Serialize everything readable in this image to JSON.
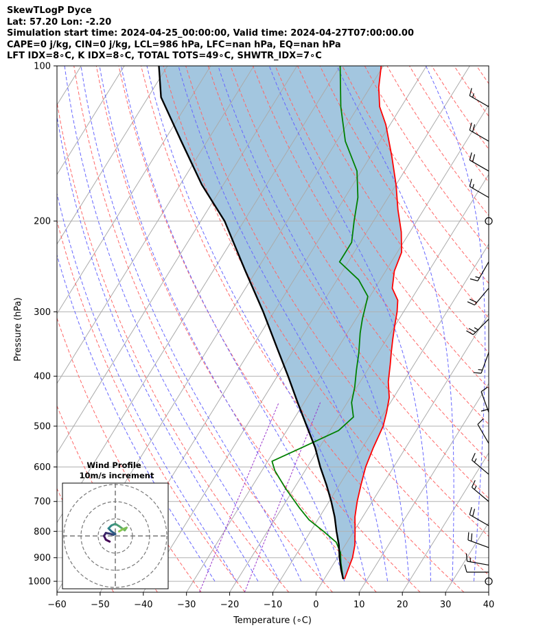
{
  "header": {
    "line1": "SkewTLogP Dyce",
    "line2": "Lat: 57.20   Lon: -2.20",
    "line3": "Simulation start time: 2024-04-25_00:00:00, Valid time: 2024-04-27T07:00:00.00",
    "line4": "CAPE=0 j/kg, CIN=0 j/kg, LCL=986 hPa, LFC=nan hPa, EQ=nan hPa",
    "line5": "LFT IDX=8∘C, K IDX=8∘C, TOTAL TOTS=49∘C, SHWTR_IDX=7∘C"
  },
  "hodograph": {
    "title": "Wind Profile",
    "subtitle": "10m/s increment"
  },
  "colors": {
    "temperature": "#ff0000",
    "dewpoint": "#008000",
    "parcel": "#000000",
    "cape_fill": "#a3c6df",
    "dry_adiabat": "#ff6666",
    "moist_adiabat": "#6666ff",
    "mixing_ratio": "#9933cc",
    "isotherm": "#aaaaaa",
    "grid": "#b0b0b0"
  },
  "chart_data": {
    "type": "line",
    "title": "",
    "xlabel": "Temperature (∘C)",
    "ylabel": "Pressure (hPa)",
    "xlim": [
      -60,
      40
    ],
    "ylim": [
      1050,
      100
    ],
    "yscale": "log",
    "skew": true,
    "grid": true,
    "xticks": [
      "−60",
      "−50",
      "−40",
      "−30",
      "−20",
      "−10",
      "0",
      "10",
      "20",
      "30",
      "40"
    ],
    "yticks": [
      "100",
      "200",
      "300",
      "400",
      "500",
      "600",
      "700",
      "800",
      "900",
      "1000"
    ],
    "series": [
      {
        "role": "temperature",
        "points": [
          [
            4.7,
            990
          ],
          [
            3.5,
            900
          ],
          [
            2.2,
            850
          ],
          [
            0.3,
            800
          ],
          [
            -1.8,
            750
          ],
          [
            -3.5,
            700
          ],
          [
            -5.0,
            650
          ],
          [
            -6.5,
            600
          ],
          [
            -7.5,
            550
          ],
          [
            -8.3,
            500
          ],
          [
            -9.5,
            470
          ],
          [
            -11.0,
            440
          ],
          [
            -13.5,
            410
          ],
          [
            -15.5,
            380
          ],
          [
            -17.0,
            360
          ],
          [
            -18.5,
            340
          ],
          [
            -20.0,
            320
          ],
          [
            -21.5,
            300
          ],
          [
            -23.0,
            285
          ],
          [
            -26.0,
            270
          ],
          [
            -28.0,
            250
          ],
          [
            -29.0,
            230
          ],
          [
            -32.0,
            210
          ],
          [
            -36.0,
            190
          ],
          [
            -40.0,
            170
          ],
          [
            -45.0,
            150
          ],
          [
            -51.0,
            130
          ],
          [
            -55.0,
            120
          ],
          [
            -58.0,
            110
          ],
          [
            -60.5,
            100
          ]
        ]
      },
      {
        "role": "dewpoint",
        "points": [
          [
            4.4,
            990
          ],
          [
            1.5,
            920
          ],
          [
            0.0,
            880
          ],
          [
            -2.5,
            840
          ],
          [
            -7.0,
            800
          ],
          [
            -12.0,
            760
          ],
          [
            -16.0,
            720
          ],
          [
            -22.0,
            660
          ],
          [
            -27.0,
            610
          ],
          [
            -29.0,
            585
          ],
          [
            -24.0,
            550
          ],
          [
            -18.0,
            510
          ],
          [
            -16.5,
            480
          ],
          [
            -19.0,
            450
          ],
          [
            -20.5,
            420
          ],
          [
            -22.5,
            390
          ],
          [
            -24.5,
            360
          ],
          [
            -27.0,
            330
          ],
          [
            -28.5,
            310
          ],
          [
            -30.5,
            280
          ],
          [
            -35.0,
            260
          ],
          [
            -42.0,
            240
          ],
          [
            -42.0,
            220
          ],
          [
            -44.5,
            200
          ],
          [
            -47.0,
            180
          ],
          [
            -51.0,
            160
          ],
          [
            -58.0,
            140
          ],
          [
            -64.0,
            120
          ],
          [
            -70.0,
            100
          ]
        ]
      },
      {
        "role": "parcel",
        "points": [
          [
            4.4,
            990
          ],
          [
            2.6,
            950
          ],
          [
            0.5,
            900
          ],
          [
            -1.5,
            850
          ],
          [
            -4.0,
            800
          ],
          [
            -6.5,
            750
          ],
          [
            -9.5,
            700
          ],
          [
            -13.0,
            650
          ],
          [
            -17.0,
            600
          ],
          [
            -21.0,
            550
          ],
          [
            -26.0,
            500
          ],
          [
            -31.5,
            450
          ],
          [
            -37.5,
            400
          ],
          [
            -44.5,
            350
          ],
          [
            -52.5,
            300
          ],
          [
            -62.5,
            250
          ],
          [
            -74.5,
            200
          ],
          [
            -85.0,
            170
          ],
          [
            -96.0,
            140
          ],
          [
            -107.0,
            115
          ],
          [
            -112.0,
            100
          ]
        ]
      }
    ],
    "wind_barbs": [
      {
        "p": 120,
        "speed_kt": 15,
        "dir": 300
      },
      {
        "p": 140,
        "speed_kt": 20,
        "dir": 300
      },
      {
        "p": 160,
        "speed_kt": 20,
        "dir": 300
      },
      {
        "p": 180,
        "speed_kt": 15,
        "dir": 300
      },
      {
        "p": 200,
        "speed_kt": 0,
        "dir": 0
      },
      {
        "p": 240,
        "speed_kt": 15,
        "dir": 210
      },
      {
        "p": 270,
        "speed_kt": 20,
        "dir": 220
      },
      {
        "p": 310,
        "speed_kt": 25,
        "dir": 225
      },
      {
        "p": 360,
        "speed_kt": 15,
        "dir": 200
      },
      {
        "p": 420,
        "speed_kt": 10,
        "dir": 180
      },
      {
        "p": 470,
        "speed_kt": 10,
        "dir": 340
      },
      {
        "p": 540,
        "speed_kt": 10,
        "dir": 330
      },
      {
        "p": 620,
        "speed_kt": 15,
        "dir": 310
      },
      {
        "p": 700,
        "speed_kt": 15,
        "dir": 310
      },
      {
        "p": 780,
        "speed_kt": 20,
        "dir": 300
      },
      {
        "p": 860,
        "speed_kt": 20,
        "dir": 290
      },
      {
        "p": 930,
        "speed_kt": 15,
        "dir": 280
      },
      {
        "p": 960,
        "speed_kt": 10,
        "dir": 270
      },
      {
        "p": 1000,
        "speed_kt": 0,
        "dir": 0
      }
    ],
    "hodograph": {
      "increment_ms": 10,
      "rings": 3,
      "points_uv": [
        [
          -1.5,
          -1.5
        ],
        [
          -2.5,
          -1.0
        ],
        [
          -3.0,
          0.0
        ],
        [
          -2.5,
          0.8
        ],
        [
          -1.5,
          0.6
        ],
        [
          -0.5,
          0.3
        ],
        [
          0.0,
          0.5
        ],
        [
          -1.0,
          1.2
        ],
        [
          -1.8,
          2.0
        ],
        [
          -1.0,
          2.8
        ],
        [
          0.0,
          3.2
        ],
        [
          1.0,
          2.6
        ],
        [
          1.8,
          2.0
        ],
        [
          2.5,
          1.5
        ],
        [
          3.0,
          2.2
        ],
        [
          2.0,
          1.8
        ],
        [
          1.0,
          1.2
        ]
      ]
    }
  }
}
